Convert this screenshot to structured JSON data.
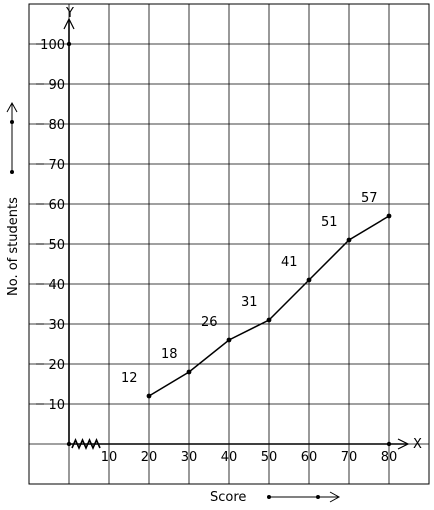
{
  "chart_data": {
    "type": "line",
    "title": "",
    "xlabel": "Score",
    "ylabel": "No. of students",
    "x_axis_letter": "X",
    "y_axis_letter": "Y",
    "xlim": [
      0,
      80
    ],
    "ylim": [
      0,
      100
    ],
    "x_ticks": [
      10,
      20,
      30,
      40,
      50,
      60,
      70,
      80
    ],
    "y_ticks": [
      10,
      20,
      30,
      40,
      50,
      60,
      70,
      80,
      90,
      100
    ],
    "grid": true,
    "axis_break": "zigzag on x-axis between 0 and 10",
    "series": [
      {
        "x": [
          20,
          30,
          40,
          50,
          60,
          70,
          80
        ],
        "y": [
          12,
          18,
          26,
          31,
          41,
          51,
          57
        ],
        "labels": [
          "12",
          "18",
          "26",
          "31",
          "41",
          "51",
          "57"
        ]
      }
    ]
  }
}
